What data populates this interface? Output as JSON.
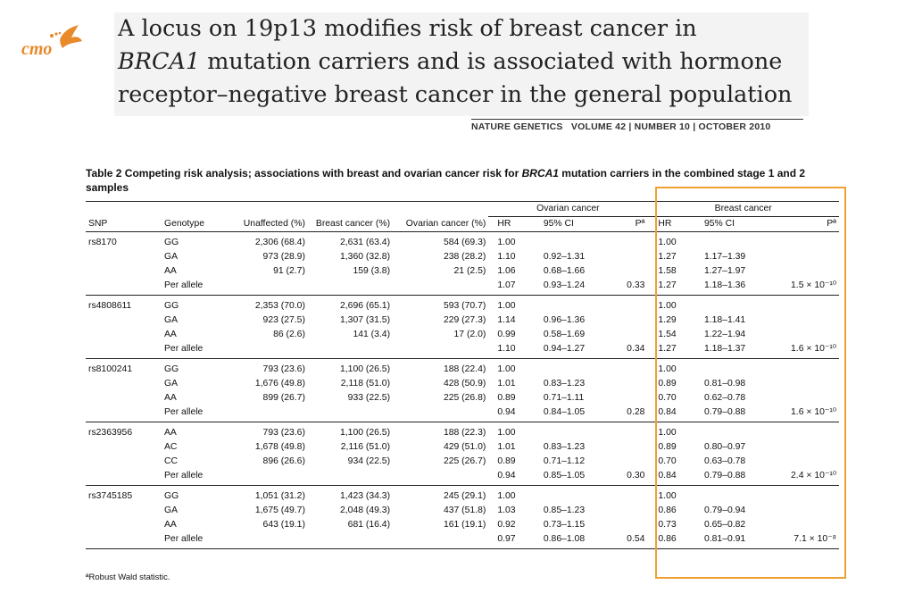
{
  "logo": {
    "text": "cmo",
    "color": "#e8892a"
  },
  "title": {
    "line1": "A locus on 19p13 modifies risk of breast cancer in",
    "line2_italic": "BRCA1",
    "line2_rest": " mutation carriers and is associated with hormone",
    "line3": "receptor–negative breast cancer in the general population"
  },
  "journal": {
    "name": "NATURE GENETICS",
    "details": "VOLUME 42 | NUMBER 10 | OCTOBER 2010"
  },
  "caption": {
    "prefix": "Table 2  Competing risk analysis; associations with breast and ovarian cancer risk for ",
    "gene": "BRCA1",
    "suffix": " mutation carriers in the combined stage 1 and 2 samples"
  },
  "table": {
    "group_headers": {
      "ovarian": "Ovarian cancer",
      "breast": "Breast cancer"
    },
    "headers": [
      "SNP",
      "Genotype",
      "Unaffected (%)",
      "Breast cancer (%)",
      "Ovarian cancer (%)",
      "HR",
      "95% CI",
      "Pª",
      "HR",
      "95% CI",
      "Pª"
    ],
    "groups": [
      {
        "snp": "rs8170",
        "rows": [
          [
            "GG",
            "2,306 (68.4)",
            "2,631 (63.4)",
            "584 (69.3)",
            "1.00",
            "",
            "",
            "1.00",
            "",
            ""
          ],
          [
            "GA",
            "973 (28.9)",
            "1,360 (32.8)",
            "238 (28.2)",
            "1.10",
            "0.92–1.31",
            "",
            "1.27",
            "1.17–1.39",
            ""
          ],
          [
            "AA",
            "91 (2.7)",
            "159 (3.8)",
            "21 (2.5)",
            "1.06",
            "0.68–1.66",
            "",
            "1.58",
            "1.27–1.97",
            ""
          ],
          [
            "Per allele",
            "",
            "",
            "",
            "1.07",
            "0.93–1.24",
            "0.33",
            "1.27",
            "1.18–1.36",
            "1.5 × 10⁻¹⁰"
          ]
        ]
      },
      {
        "snp": "rs4808611",
        "rows": [
          [
            "GG",
            "2,353 (70.0)",
            "2,696 (65.1)",
            "593 (70.7)",
            "1.00",
            "",
            "",
            "1.00",
            "",
            ""
          ],
          [
            "GA",
            "923 (27.5)",
            "1,307 (31.5)",
            "229 (27.3)",
            "1.14",
            "0.96–1.36",
            "",
            "1.29",
            "1.18–1.41",
            ""
          ],
          [
            "AA",
            "86 (2.6)",
            "141 (3.4)",
            "17 (2.0)",
            "0.99",
            "0.58–1.69",
            "",
            "1.54",
            "1.22–1.94",
            ""
          ],
          [
            "Per allele",
            "",
            "",
            "",
            "1.10",
            "0.94–1.27",
            "0.34",
            "1.27",
            "1.18–1.37",
            "1.6 × 10⁻¹⁰"
          ]
        ]
      },
      {
        "snp": "rs8100241",
        "rows": [
          [
            "GG",
            "793 (23.6)",
            "1,100 (26.5)",
            "188 (22.4)",
            "1.00",
            "",
            "",
            "1.00",
            "",
            ""
          ],
          [
            "GA",
            "1,676 (49.8)",
            "2,118 (51.0)",
            "428 (50.9)",
            "1.01",
            "0.83–1.23",
            "",
            "0.89",
            "0.81–0.98",
            ""
          ],
          [
            "AA",
            "899 (26.7)",
            "933 (22.5)",
            "225 (26.8)",
            "0.89",
            "0.71–1.11",
            "",
            "0.70",
            "0.62–0.78",
            ""
          ],
          [
            "Per allele",
            "",
            "",
            "",
            "0.94",
            "0.84–1.05",
            "0.28",
            "0.84",
            "0.79–0.88",
            "1.6 × 10⁻¹⁰"
          ]
        ]
      },
      {
        "snp": "rs2363956",
        "rows": [
          [
            "AA",
            "793 (23.6)",
            "1,100 (26.5)",
            "188 (22.3)",
            "1.00",
            "",
            "",
            "1.00",
            "",
            ""
          ],
          [
            "AC",
            "1,678 (49.8)",
            "2,116 (51.0)",
            "429 (51.0)",
            "1.01",
            "0.83–1.23",
            "",
            "0.89",
            "0.80–0.97",
            ""
          ],
          [
            "CC",
            "896 (26.6)",
            "934 (22.5)",
            "225 (26.7)",
            "0.89",
            "0.71–1.12",
            "",
            "0.70",
            "0.63–0.78",
            ""
          ],
          [
            "Per allele",
            "",
            "",
            "",
            "0.94",
            "0.85–1.05",
            "0.30",
            "0.84",
            "0.79–0.88",
            "2.4 × 10⁻¹⁰"
          ]
        ]
      },
      {
        "snp": "rs3745185",
        "rows": [
          [
            "GG",
            "1,051 (31.2)",
            "1,423 (34.3)",
            "245 (29.1)",
            "1.00",
            "",
            "",
            "1.00",
            "",
            ""
          ],
          [
            "GA",
            "1,675 (49.7)",
            "2,048 (49.3)",
            "437 (51.8)",
            "1.03",
            "0.85–1.23",
            "",
            "0.86",
            "0.79–0.94",
            ""
          ],
          [
            "AA",
            "643 (19.1)",
            "681 (16.4)",
            "161 (19.1)",
            "0.92",
            "0.73–1.15",
            "",
            "0.73",
            "0.65–0.82",
            ""
          ],
          [
            "Per allele",
            "",
            "",
            "",
            "0.97",
            "0.86–1.08",
            "0.54",
            "0.86",
            "0.81–0.91",
            "7.1 × 10⁻⁸"
          ]
        ]
      }
    ]
  },
  "footnote": "ªRobust Wald statistic.",
  "highlight": {
    "color": "#f0a030"
  }
}
